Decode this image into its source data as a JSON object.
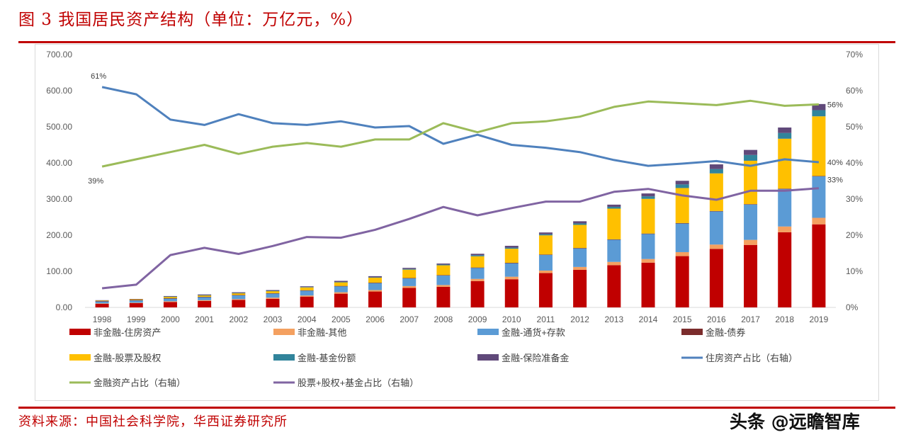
{
  "header": {
    "title": "图 3   我国居民资产结构（单位：万亿元，%）"
  },
  "footer": {
    "source": "资料来源：中国社会科学院，华西证券研究所",
    "watermark": "头条 @远瞻智库"
  },
  "chart_data": {
    "type": "bar",
    "stacked": true,
    "categories": [
      "1998",
      "1999",
      "2000",
      "2001",
      "2002",
      "2003",
      "2004",
      "2005",
      "2006",
      "2007",
      "2008",
      "2009",
      "2010",
      "2011",
      "2012",
      "2013",
      "2014",
      "2015",
      "2016",
      "2017",
      "2018",
      "2019"
    ],
    "y_left": {
      "ylim": [
        0,
        700
      ],
      "ticks": [
        "0.00",
        "100.00",
        "200.00",
        "300.00",
        "400.00",
        "500.00",
        "600.00",
        "700.00"
      ]
    },
    "y_right": {
      "ylim": [
        0,
        70
      ],
      "ticks": [
        "0%",
        "10%",
        "20%",
        "30%",
        "40%",
        "50%",
        "60%",
        "70%"
      ]
    },
    "bar_series": [
      {
        "name": "非金融-住房资产",
        "color": "#c00000",
        "values": [
          10,
          12,
          15,
          18,
          21,
          24,
          30,
          38,
          44,
          54,
          57,
          73,
          78,
          95,
          104,
          117,
          124,
          142,
          162,
          173,
          208,
          230
        ]
      },
      {
        "name": "非金融-其他",
        "color": "#f4a060",
        "values": [
          1,
          1,
          2,
          2,
          2,
          3,
          3,
          4,
          4,
          5,
          5,
          6,
          7,
          7,
          8,
          9,
          10,
          11,
          12,
          14,
          16,
          18
        ]
      },
      {
        "name": "金融-通货+存款",
        "color": "#5b9bd5",
        "values": [
          6,
          7,
          8,
          9,
          11,
          12,
          14,
          17,
          20,
          22,
          27,
          31,
          38,
          44,
          52,
          62,
          70,
          80,
          92,
          98,
          104,
          115
        ]
      },
      {
        "name": "金融-债券",
        "color": "#7b2c2c",
        "values": [
          0.5,
          0.5,
          0.5,
          0.5,
          0.5,
          0.5,
          0.5,
          0.5,
          0.5,
          0.5,
          0.5,
          0.5,
          0.5,
          0.5,
          0.5,
          0.5,
          0.5,
          0.5,
          1,
          1,
          1,
          1
        ]
      },
      {
        "name": "金融-股票及股权",
        "color": "#ffc000",
        "values": [
          1.5,
          2,
          4,
          4,
          5,
          6,
          8,
          10,
          14,
          23,
          27,
          31,
          39,
          53,
          64,
          85,
          96,
          97,
          104,
          120,
          138,
          165
        ]
      },
      {
        "name": "金融-基金份额",
        "color": "#31849b",
        "values": [
          0,
          0,
          0.5,
          0.5,
          0.5,
          0.5,
          1,
          1,
          1,
          2,
          2,
          3,
          3,
          3,
          4,
          5,
          7,
          10,
          12,
          16,
          16,
          17
        ]
      },
      {
        "name": "金融-保险准备金",
        "color": "#60497a",
        "values": [
          1,
          1,
          1.5,
          2,
          2,
          2,
          2,
          3,
          3,
          3,
          3,
          4,
          5,
          5,
          6,
          6,
          8,
          10,
          13,
          14,
          15,
          17
        ]
      }
    ],
    "line_series": [
      {
        "name": "住房资产占比（右轴）",
        "color": "#4f81bd",
        "values": [
          61,
          59,
          52,
          50.5,
          53.5,
          51,
          50.5,
          51.5,
          49.8,
          50.2,
          45.3,
          47.8,
          45,
          44.2,
          43,
          40.8,
          39.2,
          39.8,
          40.5,
          39.2,
          41,
          40.2
        ]
      },
      {
        "name": "金融资产占比（右轴）",
        "color": "#9bbb59",
        "values": [
          39,
          41,
          43,
          45,
          42.5,
          44.5,
          45.5,
          44.5,
          46.5,
          46.5,
          51,
          48.5,
          51,
          51.5,
          52.8,
          55.5,
          57,
          56.5,
          56,
          57.2,
          55.8,
          56.2
        ]
      },
      {
        "name": "股票+股权+基金占比（右轴）",
        "color": "#8064a2",
        "values": [
          5.3,
          6.3,
          14.5,
          16.5,
          14.8,
          17,
          19.5,
          19.3,
          21.5,
          24.5,
          27.8,
          25.5,
          27.5,
          29.3,
          29.3,
          32,
          32.8,
          31,
          29.8,
          32.3,
          32.3,
          33
        ]
      }
    ],
    "annotations": [
      "61%",
      "39%",
      "56%",
      "40%",
      "33%"
    ]
  }
}
